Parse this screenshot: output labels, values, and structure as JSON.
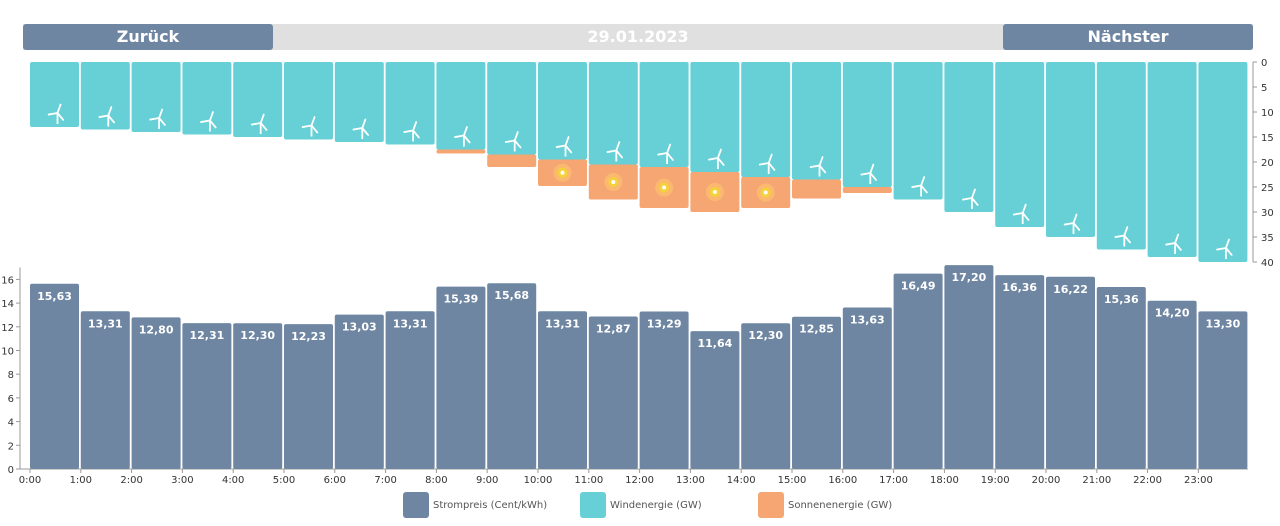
{
  "nav": {
    "back_label": "Zurück",
    "date": "29.01.2023",
    "next_label": "Nächster"
  },
  "colors": {
    "price": "#6f86a3",
    "wind": "#66d0d6",
    "solar": "#f5a673",
    "button": "#6f86a3",
    "bar_track": "#e0e0e0"
  },
  "legend": [
    {
      "label": "Strompreis (Cent/kWh)",
      "color": "#6f86a3"
    },
    {
      "label": "Windenergie (GW)",
      "color": "#66d0d6"
    },
    {
      "label": "Sonnenenergie (GW)",
      "color": "#f5a673"
    }
  ],
  "chart_data": [
    {
      "type": "bar",
      "title": "",
      "orientation": "inverted",
      "categories": [
        "0:00",
        "1:00",
        "2:00",
        "3:00",
        "4:00",
        "5:00",
        "6:00",
        "7:00",
        "8:00",
        "9:00",
        "10:00",
        "11:00",
        "12:00",
        "13:00",
        "14:00",
        "15:00",
        "16:00",
        "17:00",
        "18:00",
        "19:00",
        "20:00",
        "21:00",
        "22:00",
        "23:00"
      ],
      "series": [
        {
          "name": "Windenergie (GW)",
          "values": [
            13,
            13.5,
            14,
            14.5,
            15,
            15.5,
            16,
            16.5,
            17.5,
            18.5,
            19.5,
            20.5,
            21,
            22,
            23,
            23.5,
            25,
            27.5,
            30,
            33,
            35,
            37.5,
            39,
            40
          ]
        },
        {
          "name": "Sonnenenergie (GW)",
          "values": [
            0,
            0,
            0,
            0,
            0,
            0,
            0,
            0,
            0.8,
            2.5,
            5.3,
            7,
            8.2,
            8,
            6.2,
            3.8,
            1.2,
            0,
            0,
            0,
            0,
            0,
            0,
            0
          ]
        }
      ],
      "ylim": [
        0,
        40
      ],
      "yticks": [
        0,
        5,
        10,
        15,
        20,
        25,
        30,
        35,
        40
      ],
      "axis_side": "right",
      "icons": {
        "wind": "wind-turbine-icon",
        "solar": "sun-icon"
      }
    },
    {
      "type": "bar",
      "title": "",
      "categories": [
        "0:00",
        "1:00",
        "2:00",
        "3:00",
        "4:00",
        "5:00",
        "6:00",
        "7:00",
        "8:00",
        "9:00",
        "10:00",
        "11:00",
        "12:00",
        "13:00",
        "14:00",
        "15:00",
        "16:00",
        "17:00",
        "18:00",
        "19:00",
        "20:00",
        "21:00",
        "22:00",
        "23:00"
      ],
      "series": [
        {
          "name": "Strompreis (Cent/kWh)",
          "values": [
            15.63,
            13.31,
            12.8,
            12.31,
            12.3,
            12.23,
            13.03,
            13.31,
            15.39,
            15.68,
            13.31,
            12.87,
            13.29,
            11.64,
            12.3,
            12.85,
            13.63,
            16.49,
            17.2,
            16.36,
            16.22,
            15.36,
            14.2,
            13.3
          ]
        }
      ],
      "value_labels": [
        "15,63",
        "13,31",
        "12,80",
        "12,31",
        "12,30",
        "12,23",
        "13,03",
        "13,31",
        "15,39",
        "15,68",
        "13,31",
        "12,87",
        "13,29",
        "11,64",
        "12,30",
        "12,85",
        "13,63",
        "16,49",
        "17,20",
        "16,36",
        "16,22",
        "15,36",
        "14,20",
        "13,30"
      ],
      "ylim": [
        0,
        17
      ],
      "yticks": [
        0,
        2,
        4,
        6,
        8,
        10,
        12,
        14,
        16
      ],
      "axis_side": "left"
    }
  ]
}
